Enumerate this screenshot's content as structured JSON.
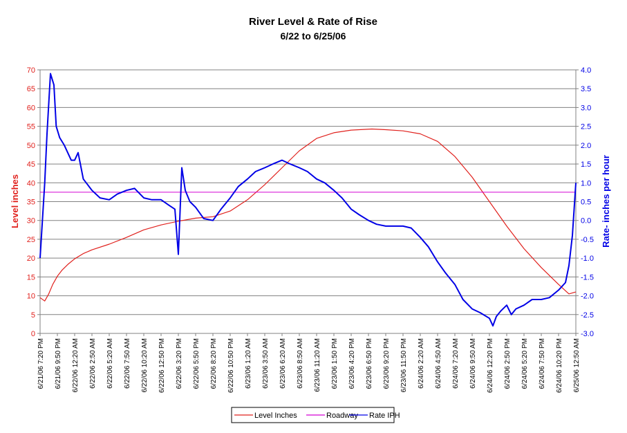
{
  "chart_data": {
    "type": "line",
    "title": "River Level & Rate of Rise",
    "subtitle": "6/22 to 6/25/06",
    "ylabel": "Level inches",
    "y2label": "Rate- inches per hour",
    "ylim": [
      0,
      70
    ],
    "y2lim": [
      -3.0,
      4.0
    ],
    "yticks": [
      "0",
      "5",
      "10",
      "15",
      "20",
      "25",
      "30",
      "35",
      "40",
      "45",
      "50",
      "55",
      "60",
      "65",
      "70"
    ],
    "y2ticks": [
      "-3.0",
      "-2.5",
      "-2.0",
      "-1.5",
      "-1.0",
      "-0.5",
      "0.0",
      "0.5",
      "1.0",
      "1.5",
      "2.0",
      "2.5",
      "3.0",
      "3.5",
      "4.0"
    ],
    "xticks": [
      "6/21/06 7:20 PM",
      "6/21/06 9:50 PM",
      "6/22/06 12:20 AM",
      "6/22/06 2:50 AM",
      "6/22/06 5:20 AM",
      "6/22/06 7:50 AM",
      "6/22/06 10:20 AM",
      "6/22/06 12:50 PM",
      "6/22/06 3:20 PM",
      "6/22/06 5:50 PM",
      "6/22/06 8:20 PM",
      "6/22/06 10:50 PM",
      "6/23/06 1:20 AM",
      "6/23/06 3:50 AM",
      "6/23/06 6:20 AM",
      "6/23/06 8:50 AM",
      "6/23/06 11:20 AM",
      "6/23/06 1:50 PM",
      "6/23/06 4:20 PM",
      "6/23/06 6:50 PM",
      "6/23/06 9:20 PM",
      "6/23/06 11:50 PM",
      "6/24/06 2:20 AM",
      "6/24/06 4:50 AM",
      "6/24/06 7:20 AM",
      "6/24/06 9:50 AM",
      "6/24/06 12:20 PM",
      "6/24/06 2:50 PM",
      "6/24/06 5:20 PM",
      "6/24/06 7:50 PM",
      "6/24/06 10:20 PM",
      "6/25/06 12:50 AM"
    ],
    "grid": true,
    "legend_position": "bottom",
    "series": [
      {
        "name": "Level Inches",
        "axis": "left",
        "color": "#e0201c",
        "points": [
          [
            "6/21/06 7:20 PM",
            9.5
          ],
          [
            "6/21/06 8:00 PM",
            8.6
          ],
          [
            "6/21/06 8:35 PM",
            10.5
          ],
          [
            "6/21/06 9:10 PM",
            13.0
          ],
          [
            "6/21/06 9:50 PM",
            15.2
          ],
          [
            "6/21/06 10:30 PM",
            16.8
          ],
          [
            "6/21/06 11:20 PM",
            18.3
          ],
          [
            "6/22/06 12:20 AM",
            19.8
          ],
          [
            "6/22/06 1:35 AM",
            21.2
          ],
          [
            "6/22/06 2:50 AM",
            22.2
          ],
          [
            "6/22/06 5:20 AM",
            23.7
          ],
          [
            "6/22/06 7:50 AM",
            25.5
          ],
          [
            "6/22/06 10:20 AM",
            27.5
          ],
          [
            "6/22/06 12:50 PM",
            28.8
          ],
          [
            "6/22/06 3:20 PM",
            29.8
          ],
          [
            "6/22/06 5:50 PM",
            30.6
          ],
          [
            "6/22/06 8:20 PM",
            31.0
          ],
          [
            "6/22/06 10:50 PM",
            32.5
          ],
          [
            "6/23/06 1:20 AM",
            35.5
          ],
          [
            "6/23/06 3:50 AM",
            39.5
          ],
          [
            "6/23/06 6:20 AM",
            44.0
          ],
          [
            "6/23/06 8:50 AM",
            48.5
          ],
          [
            "6/23/06 11:20 AM",
            51.8
          ],
          [
            "6/23/06 1:50 PM",
            53.3
          ],
          [
            "6/23/06 4:20 PM",
            54.0
          ],
          [
            "6/23/06 7:20 PM",
            54.3
          ],
          [
            "6/23/06 9:20 PM",
            54.1
          ],
          [
            "6/23/06 11:50 PM",
            53.8
          ],
          [
            "6/24/06 2:20 AM",
            53.0
          ],
          [
            "6/24/06 4:50 AM",
            51.0
          ],
          [
            "6/24/06 7:20 AM",
            47.0
          ],
          [
            "6/24/06 9:50 AM",
            41.5
          ],
          [
            "6/24/06 12:20 PM",
            35.0
          ],
          [
            "6/24/06 2:50 PM",
            28.5
          ],
          [
            "6/24/06 5:20 PM",
            22.5
          ],
          [
            "6/24/06 7:50 PM",
            17.5
          ],
          [
            "6/24/06 10:20 PM",
            13.0
          ],
          [
            "6/24/06 11:50 PM",
            10.5
          ],
          [
            "6/25/06 12:50 AM",
            11.0
          ]
        ]
      },
      {
        "name": "Roadway",
        "axis": "left",
        "color": "#d400d4",
        "points": [
          [
            "6/21/06 7:20 PM",
            37.5
          ],
          [
            "6/25/06 12:50 AM",
            37.5
          ]
        ]
      },
      {
        "name": "Rate IPH",
        "axis": "right",
        "color": "#0000e6",
        "points": [
          [
            "6/21/06 7:20 PM",
            -1.0
          ],
          [
            "6/21/06 8:00 PM",
            1.0
          ],
          [
            "6/21/06 8:20 PM",
            2.3
          ],
          [
            "6/21/06 8:50 PM",
            3.9
          ],
          [
            "6/21/06 9:20 PM",
            3.6
          ],
          [
            "6/21/06 9:40 PM",
            2.5
          ],
          [
            "6/21/06 10:10 PM",
            2.2
          ],
          [
            "6/21/06 10:50 PM",
            2.0
          ],
          [
            "6/21/06 11:50 PM",
            1.6
          ],
          [
            "6/22/06 12:20 AM",
            1.6
          ],
          [
            "6/22/06 12:50 AM",
            1.8
          ],
          [
            "6/22/06 1:35 AM",
            1.1
          ],
          [
            "6/22/06 2:50 AM",
            0.8
          ],
          [
            "6/22/06 4:00 AM",
            0.6
          ],
          [
            "6/22/06 5:20 AM",
            0.55
          ],
          [
            "6/22/06 6:30 AM",
            0.7
          ],
          [
            "6/22/06 7:50 AM",
            0.8
          ],
          [
            "6/22/06 9:00 AM",
            0.85
          ],
          [
            "6/22/06 10:20 AM",
            0.6
          ],
          [
            "6/22/06 11:30 AM",
            0.55
          ],
          [
            "6/22/06 12:50 PM",
            0.55
          ],
          [
            "6/22/06 2:00 PM",
            0.4
          ],
          [
            "6/22/06 2:50 PM",
            0.3
          ],
          [
            "6/22/06 3:20 PM",
            -0.9
          ],
          [
            "6/22/06 3:50 PM",
            1.4
          ],
          [
            "6/22/06 4:20 PM",
            0.8
          ],
          [
            "6/22/06 5:00 PM",
            0.5
          ],
          [
            "6/22/06 5:50 PM",
            0.35
          ],
          [
            "6/22/06 7:00 PM",
            0.05
          ],
          [
            "6/22/06 8:20 PM",
            0.0
          ],
          [
            "6/22/06 9:30 PM",
            0.3
          ],
          [
            "6/22/06 10:50 PM",
            0.6
          ],
          [
            "6/23/06 12:00 AM",
            0.9
          ],
          [
            "6/23/06 1:20 AM",
            1.1
          ],
          [
            "6/23/06 2:30 AM",
            1.3
          ],
          [
            "6/23/06 3:50 AM",
            1.4
          ],
          [
            "6/23/06 5:00 AM",
            1.5
          ],
          [
            "6/23/06 6:20 AM",
            1.6
          ],
          [
            "6/23/06 7:30 AM",
            1.5
          ],
          [
            "6/23/06 8:50 AM",
            1.4
          ],
          [
            "6/23/06 10:00 AM",
            1.3
          ],
          [
            "6/23/06 11:20 AM",
            1.1
          ],
          [
            "6/23/06 12:30 PM",
            1.0
          ],
          [
            "6/23/06 1:50 PM",
            0.8
          ],
          [
            "6/23/06 3:00 PM",
            0.6
          ],
          [
            "6/23/06 4:20 PM",
            0.3
          ],
          [
            "6/23/06 5:30 PM",
            0.15
          ],
          [
            "6/23/06 6:50 PM",
            0.0
          ],
          [
            "6/23/06 8:00 PM",
            -0.1
          ],
          [
            "6/23/06 9:20 PM",
            -0.15
          ],
          [
            "6/23/06 11:50 PM",
            -0.15
          ],
          [
            "6/24/06 1:00 AM",
            -0.2
          ],
          [
            "6/24/06 2:20 AM",
            -0.45
          ],
          [
            "6/24/06 3:30 AM",
            -0.7
          ],
          [
            "6/24/06 4:50 AM",
            -1.1
          ],
          [
            "6/24/06 6:00 AM",
            -1.4
          ],
          [
            "6/24/06 7:20 AM",
            -1.7
          ],
          [
            "6/24/06 8:30 AM",
            -2.1
          ],
          [
            "6/24/06 9:50 AM",
            -2.35
          ],
          [
            "6/24/06 11:00 AM",
            -2.45
          ],
          [
            "6/24/06 12:20 PM",
            -2.6
          ],
          [
            "6/24/06 12:50 PM",
            -2.8
          ],
          [
            "6/24/06 1:20 PM",
            -2.55
          ],
          [
            "6/24/06 2:00 PM",
            -2.4
          ],
          [
            "6/24/06 2:50 PM",
            -2.25
          ],
          [
            "6/24/06 3:30 PM",
            -2.5
          ],
          [
            "6/24/06 4:10 PM",
            -2.35
          ],
          [
            "6/24/06 5:20 PM",
            -2.25
          ],
          [
            "6/24/06 6:30 PM",
            -2.1
          ],
          [
            "6/24/06 7:50 PM",
            -2.1
          ],
          [
            "6/24/06 9:00 PM",
            -2.05
          ],
          [
            "6/24/06 10:20 PM",
            -1.85
          ],
          [
            "6/24/06 11:20 PM",
            -1.65
          ],
          [
            "6/24/06 11:50 PM",
            -1.2
          ],
          [
            "6/25/06 12:20 AM",
            -0.4
          ],
          [
            "6/25/06 12:50 AM",
            1.0
          ]
        ]
      }
    ]
  }
}
